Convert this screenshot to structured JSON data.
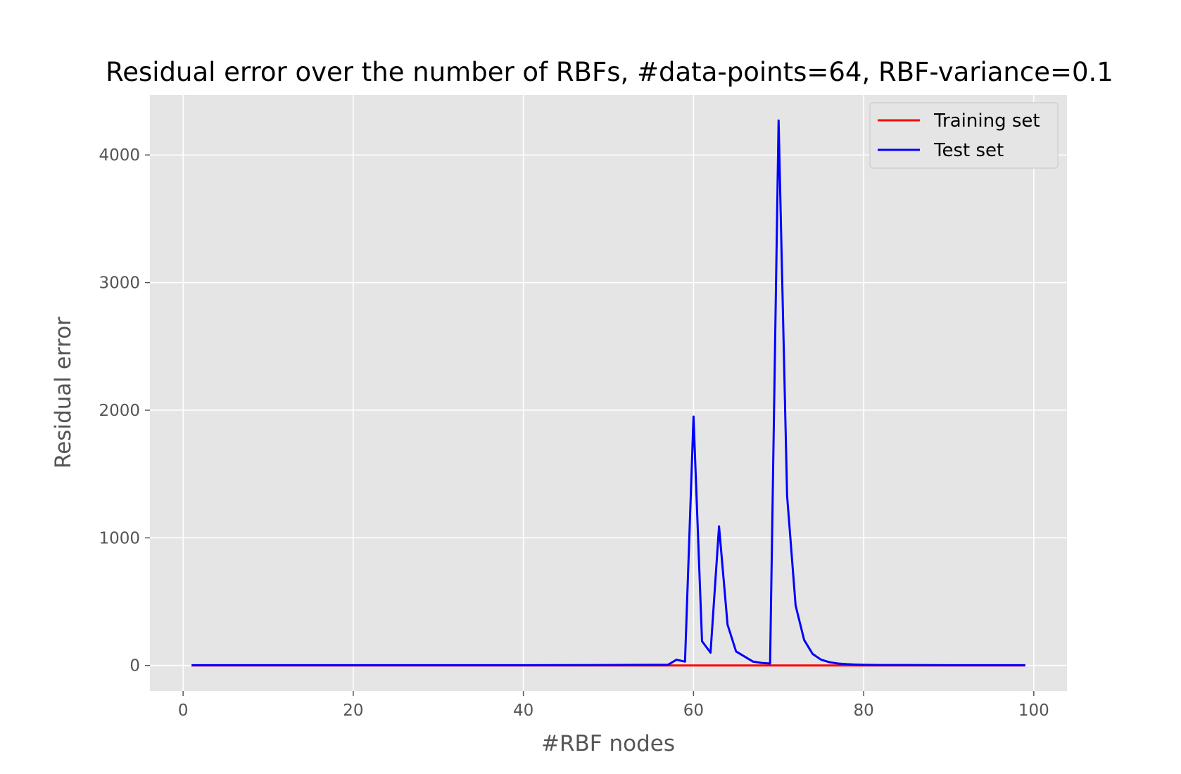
{
  "chart_data": {
    "type": "line",
    "title": "Residual error over the number of RBFs, #data-points=64, RBF-variance=0.1",
    "xlabel": "#RBF nodes",
    "ylabel": "Residual error",
    "xlim": [
      -3.9,
      103.9
    ],
    "ylim": [
      -200,
      4470
    ],
    "xticks": [
      0,
      20,
      40,
      60,
      80,
      100
    ],
    "yticks": [
      0,
      1000,
      2000,
      3000,
      4000
    ],
    "xtick_labels": [
      "0",
      "20",
      "40",
      "60",
      "80",
      "100"
    ],
    "ytick_labels": [
      "0",
      "1000",
      "2000",
      "3000",
      "4000"
    ],
    "grid": true,
    "legend_position": "top-right",
    "series": [
      {
        "name": "Training set",
        "color": "#ff0000",
        "x": [
          1,
          10,
          20,
          30,
          40,
          50,
          55,
          57,
          58,
          60,
          65,
          70,
          75,
          80,
          90,
          99
        ],
        "y": [
          0,
          0,
          0,
          0,
          0,
          0,
          0,
          0,
          0,
          0,
          0,
          0,
          0,
          0,
          0,
          0
        ]
      },
      {
        "name": "Test set",
        "color": "#0000ff",
        "x": [
          1,
          10,
          20,
          30,
          40,
          50,
          55,
          57,
          58,
          59,
          60,
          61,
          62,
          63,
          64,
          65,
          66,
          67,
          68,
          69,
          70,
          71,
          72,
          73,
          74,
          75,
          76,
          77,
          78,
          79,
          80,
          82,
          85,
          90,
          95,
          99
        ],
        "y": [
          2,
          2,
          2,
          2,
          2,
          3,
          5,
          5,
          45,
          30,
          1950,
          190,
          100,
          1090,
          320,
          110,
          70,
          30,
          20,
          15,
          4270,
          1330,
          470,
          200,
          90,
          45,
          25,
          15,
          10,
          7,
          5,
          3,
          3,
          2,
          2,
          2
        ]
      }
    ]
  }
}
